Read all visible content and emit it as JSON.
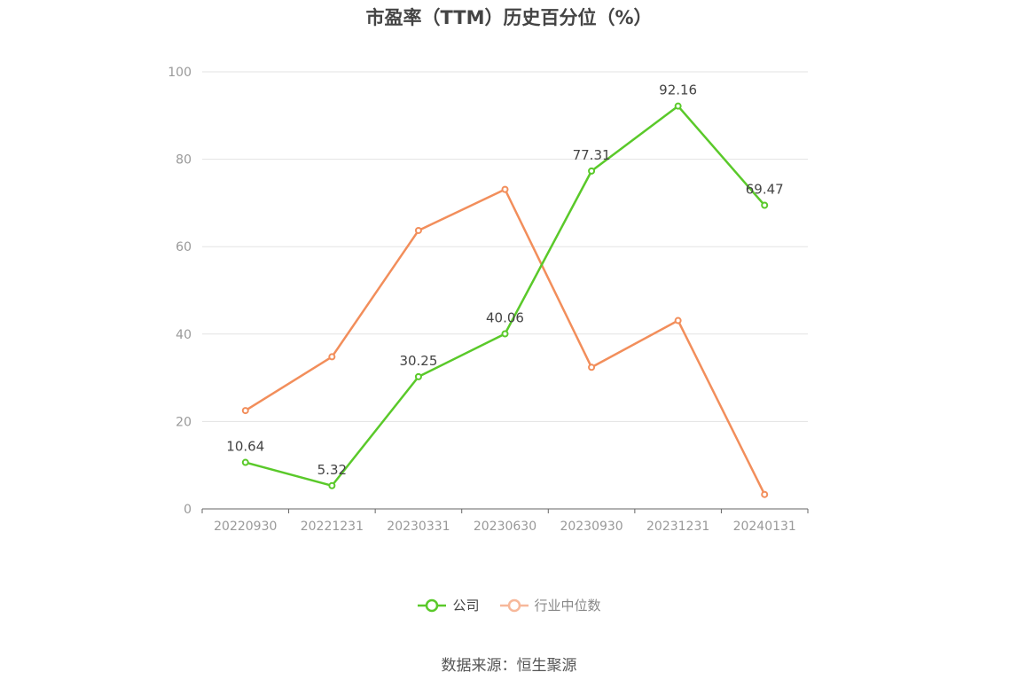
{
  "source_label": "数据来源：恒生聚源",
  "chart_data": {
    "type": "line",
    "title": "市盈率（TTM）历史百分位（%）",
    "categories": [
      "20220930",
      "20221231",
      "20230331",
      "20230630",
      "20230930",
      "20231231",
      "20240131"
    ],
    "ylim": [
      0,
      100
    ],
    "yticks": [
      0,
      20,
      40,
      60,
      80,
      100
    ],
    "grid": true,
    "legend_position": "bottom",
    "series": [
      {
        "name": "公司",
        "color": "#5ac92a",
        "values": [
          10.64,
          5.32,
          30.25,
          40.06,
          77.31,
          92.16,
          69.47
        ],
        "data_labels": [
          "10.64",
          "5.32",
          "30.25",
          "40.06",
          "77.31",
          "92.16",
          "69.47"
        ]
      },
      {
        "name": "行业中位数",
        "color": "#f28e5b",
        "legend_color": "#f7b89a",
        "values": [
          22.5,
          34.8,
          63.7,
          73.1,
          32.4,
          43.1,
          3.3
        ]
      }
    ]
  }
}
